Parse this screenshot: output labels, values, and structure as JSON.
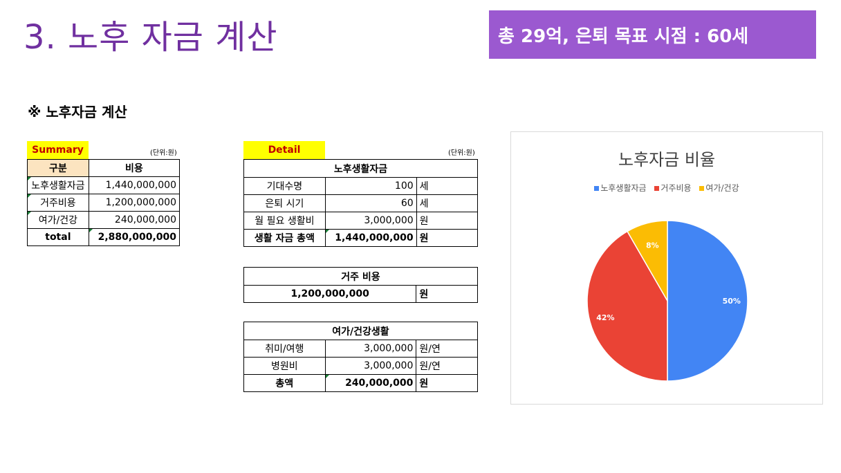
{
  "page": {
    "title": "3. 노후 자금 계산",
    "banner": "총 29억, 은퇴 목표 시점 : 60세",
    "section_heading": "※ 노후자금 계산"
  },
  "summary": {
    "tag": "Summary",
    "unit": "(단위:원)",
    "headers": [
      "구분",
      "비용"
    ],
    "rows": [
      {
        "label": "노후생활자금",
        "value": "1,440,000,000"
      },
      {
        "label": "거주비용",
        "value": "1,200,000,000"
      },
      {
        "label": "여가/건강",
        "value": "240,000,000"
      }
    ],
    "total": {
      "label": "total",
      "value": "2,880,000,000"
    }
  },
  "detail": {
    "tag": "Detail",
    "unit": "(단위:원)",
    "living": {
      "title": "노후생활자금",
      "rows": [
        {
          "label": "기대수명",
          "value": "100",
          "unit": "세"
        },
        {
          "label": "은퇴 시기",
          "value": "60",
          "unit": "세"
        },
        {
          "label": "월 필요 생활비",
          "value": "3,000,000",
          "unit": "원"
        }
      ],
      "total": {
        "label": "생활 자금 총액",
        "value": "1,440,000,000",
        "unit": "원"
      }
    },
    "housing": {
      "title": "거주 비용",
      "value": "1,200,000,000",
      "unit": "원"
    },
    "leisure": {
      "title": "여가/건강생활",
      "rows": [
        {
          "label": "취미/여행",
          "value": "3,000,000",
          "unit": "원/연"
        },
        {
          "label": "병원비",
          "value": "3,000,000",
          "unit": "원/연"
        }
      ],
      "total": {
        "label": "총액",
        "value": "240,000,000",
        "unit": "원"
      }
    }
  },
  "chart_data": {
    "type": "pie",
    "title": "노후자금 비율",
    "legend_position": "top",
    "categories": [
      "노후생활자금",
      "거주비용",
      "여가/건강"
    ],
    "values": [
      1440000000,
      1200000000,
      240000000
    ],
    "labels": [
      "50%",
      "42%",
      "8%"
    ],
    "colors": [
      "#4285f4",
      "#ea4335",
      "#fbbc04"
    ]
  },
  "colors": {
    "title": "#7030a0",
    "banner": "#9b59d0",
    "tag_bg": "#ffff00",
    "tag_text": "#c00000",
    "header_cream": "#fce4c0"
  }
}
